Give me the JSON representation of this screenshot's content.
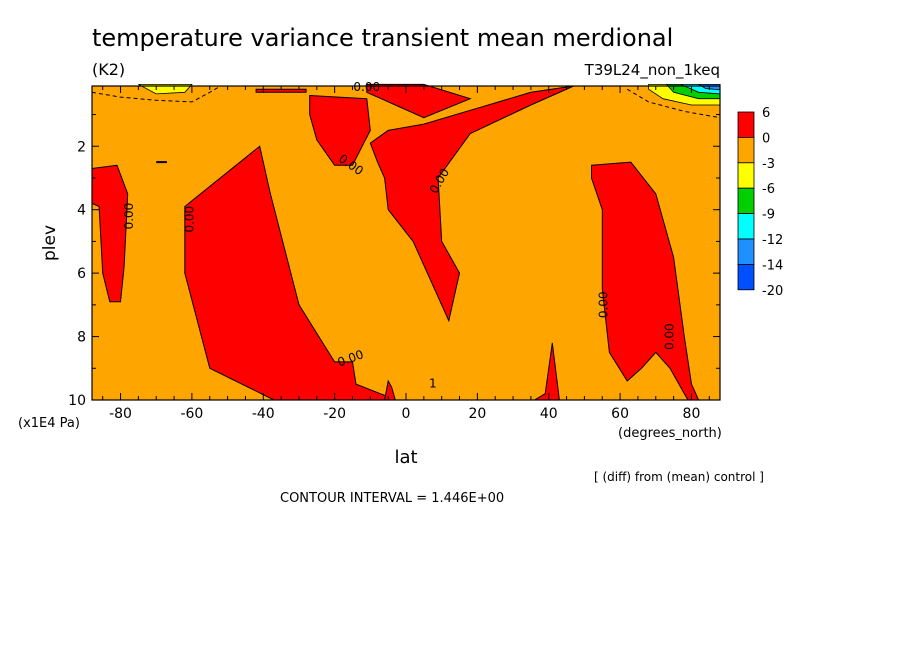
{
  "title": "temperature variance transient mean merdional",
  "units": "(K2)",
  "run_label": "T39L24_non_1keq",
  "footer": {
    "diff_note": "[ (diff) from (mean) control ]",
    "contour_interval": "CONTOUR INTERVAL = 1.446E+00"
  },
  "colors": {
    "background_fill": "#ffa500",
    "positive_fill": "#ff0000",
    "scale": [
      "#ff0000",
      "#ffa500",
      "#ffff00",
      "#00d000",
      "#00ffff",
      "#1e90ff",
      "#0050ff"
    ]
  },
  "chart_data": {
    "type": "heatmap",
    "plot": "filled latitude-pressure contour",
    "xlabel": "lat",
    "xunits": "(degrees_north)",
    "ylabel": "plev",
    "yunits": "(x1E4 Pa)",
    "xlim": [
      -88,
      88
    ],
    "ylim": [
      10,
      0.1
    ],
    "x_ticks": [
      -80,
      -60,
      -40,
      -20,
      0,
      20,
      40,
      60,
      80
    ],
    "y_ticks": [
      2,
      4,
      6,
      8,
      10
    ],
    "legend_labels": [
      "6",
      "0",
      "-3",
      "-6",
      "-9",
      "-12",
      "-14",
      "-20"
    ],
    "contour_labels": [
      {
        "text": "0.00",
        "lat": -11,
        "plev": 0.15,
        "rot": 0
      },
      {
        "text": "0.00",
        "lat": -15.5,
        "plev": 2.6,
        "rot": 35
      },
      {
        "text": "0.00",
        "lat": 9.5,
        "plev": 3.1,
        "rot": -60
      },
      {
        "text": "0.00",
        "lat": -77.5,
        "plev": 4.2,
        "rot": -90
      },
      {
        "text": "0.00",
        "lat": -60.5,
        "plev": 4.3,
        "rot": -90
      },
      {
        "text": "0.00",
        "lat": 55.5,
        "plev": 7.0,
        "rot": -90
      },
      {
        "text": "0.00",
        "lat": 74,
        "plev": 8.0,
        "rot": -90
      },
      {
        "text": "0.00",
        "lat": -15.5,
        "plev": 8.7,
        "rot": -20
      },
      {
        "text": "1",
        "lat": 7.5,
        "plev": 9.5,
        "rot": 0
      }
    ],
    "regions": [
      {
        "name": "positive-region-main",
        "points": [
          [
            -62,
            3.9
          ],
          [
            -41,
            2.0
          ],
          [
            -38,
            3.5
          ],
          [
            -30,
            7.0
          ],
          [
            -20,
            8.8
          ],
          [
            -15,
            8.8
          ],
          [
            -14,
            9.5
          ],
          [
            -5,
            9.9
          ],
          [
            -5,
            10
          ],
          [
            -37,
            10
          ],
          [
            -55,
            9.0
          ],
          [
            -62,
            6.0
          ]
        ]
      },
      {
        "name": "positive-region-southern-edge",
        "points": [
          [
            -88,
            2.7
          ],
          [
            -81,
            2.6
          ],
          [
            -78,
            3.5
          ],
          [
            -79,
            5.8
          ],
          [
            -80,
            6.9
          ],
          [
            -83,
            6.9
          ],
          [
            -85,
            6.0
          ],
          [
            -86,
            3.9
          ],
          [
            -88,
            3.8
          ]
        ]
      },
      {
        "name": "positive-region-equatorial",
        "points": [
          [
            -27,
            0.4
          ],
          [
            -11,
            0.5
          ],
          [
            -10,
            1.5
          ],
          [
            -15,
            2.6
          ],
          [
            -20,
            2.6
          ],
          [
            -25,
            1.8
          ],
          [
            -27,
            1.0
          ]
        ]
      },
      {
        "name": "positive-region-tropical-column",
        "points": [
          [
            -10,
            1.9
          ],
          [
            -5,
            1.5
          ],
          [
            5,
            1.3
          ],
          [
            20,
            0.8
          ],
          [
            35,
            0.3
          ],
          [
            47,
            0.1
          ],
          [
            35,
            0.7
          ],
          [
            18,
            1.6
          ],
          [
            9,
            3.0
          ],
          [
            10,
            5.0
          ],
          [
            15,
            6.0
          ],
          [
            12,
            7.5
          ],
          [
            2,
            5.0
          ],
          [
            -5,
            4.0
          ],
          [
            -6,
            3.0
          ],
          [
            -8,
            2.5
          ]
        ]
      },
      {
        "name": "positive-region-upper-bar",
        "points": [
          [
            -11,
            0.05
          ],
          [
            5,
            0.05
          ],
          [
            18,
            0.5
          ],
          [
            5,
            1.1
          ],
          [
            -3,
            0.7
          ],
          [
            -11,
            0.3
          ]
        ]
      },
      {
        "name": "positive-region-northern-column",
        "points": [
          [
            52,
            2.6
          ],
          [
            63,
            2.5
          ],
          [
            70,
            3.5
          ],
          [
            75,
            5.5
          ],
          [
            78,
            8.0
          ],
          [
            80,
            9.5
          ],
          [
            82,
            10
          ],
          [
            79,
            10
          ],
          [
            74,
            9.0
          ],
          [
            70,
            8.5
          ],
          [
            66,
            9.0
          ],
          [
            62,
            9.4
          ],
          [
            57,
            8.5
          ],
          [
            55,
            6.5
          ],
          [
            55,
            4.0
          ],
          [
            52,
            3.0
          ]
        ]
      },
      {
        "name": "positive-region-spike-near-zero",
        "points": [
          [
            -5,
            9.4
          ],
          [
            -4,
            9.6
          ],
          [
            -3,
            10
          ],
          [
            -6,
            10
          ]
        ]
      },
      {
        "name": "positive-region-spike-40",
        "points": [
          [
            36,
            10
          ],
          [
            39,
            9.8
          ],
          [
            41,
            8.2
          ],
          [
            43,
            10
          ]
        ]
      },
      {
        "name": "positive-region-upper-strip",
        "points": [
          [
            -42,
            0.2
          ],
          [
            -28,
            0.2
          ],
          [
            -28,
            0.3
          ],
          [
            -42,
            0.3
          ]
        ]
      }
    ],
    "negative_regions": [
      {
        "name": "negative-region-north-top-yellow",
        "color": "#ffff00",
        "points": [
          [
            68,
            0.05
          ],
          [
            88,
            0.05
          ],
          [
            88,
            0.7
          ],
          [
            80,
            0.7
          ],
          [
            72,
            0.5
          ],
          [
            68,
            0.2
          ]
        ]
      },
      {
        "name": "negative-region-north-top-green",
        "color": "#00d000",
        "points": [
          [
            73,
            0.05
          ],
          [
            88,
            0.05
          ],
          [
            88,
            0.5
          ],
          [
            82,
            0.5
          ],
          [
            75,
            0.3
          ]
        ]
      },
      {
        "name": "negative-region-north-top-cyan",
        "color": "#00ffff",
        "points": [
          [
            77,
            0.05
          ],
          [
            88,
            0.05
          ],
          [
            88,
            0.35
          ],
          [
            82,
            0.3
          ]
        ]
      },
      {
        "name": "negative-region-north-top-blue",
        "color": "#1e90ff",
        "points": [
          [
            82,
            0.05
          ],
          [
            88,
            0.05
          ],
          [
            88,
            0.22
          ],
          [
            84,
            0.18
          ]
        ]
      },
      {
        "name": "negative-region-south-top-yellow",
        "color": "#ffff00",
        "points": [
          [
            -75,
            0.05
          ],
          [
            -60,
            0.05
          ],
          [
            -62,
            0.3
          ],
          [
            -70,
            0.35
          ]
        ]
      }
    ],
    "dashed_contours": [
      {
        "name": "dashed-contour-north",
        "points": [
          [
            62,
            0.2
          ],
          [
            68,
            0.6
          ],
          [
            78,
            0.9
          ],
          [
            88,
            1.1
          ]
        ]
      },
      {
        "name": "dashed-contour-south",
        "points": [
          [
            -88,
            0.3
          ],
          [
            -80,
            0.45
          ],
          [
            -70,
            0.55
          ],
          [
            -60,
            0.6
          ],
          [
            -55,
            0.3
          ],
          [
            -52,
            0.1
          ]
        ]
      }
    ],
    "short_marks": [
      {
        "name": "mark-near-minus68",
        "points": [
          [
            -70,
            2.5
          ],
          [
            -67,
            2.5
          ]
        ]
      }
    ]
  }
}
